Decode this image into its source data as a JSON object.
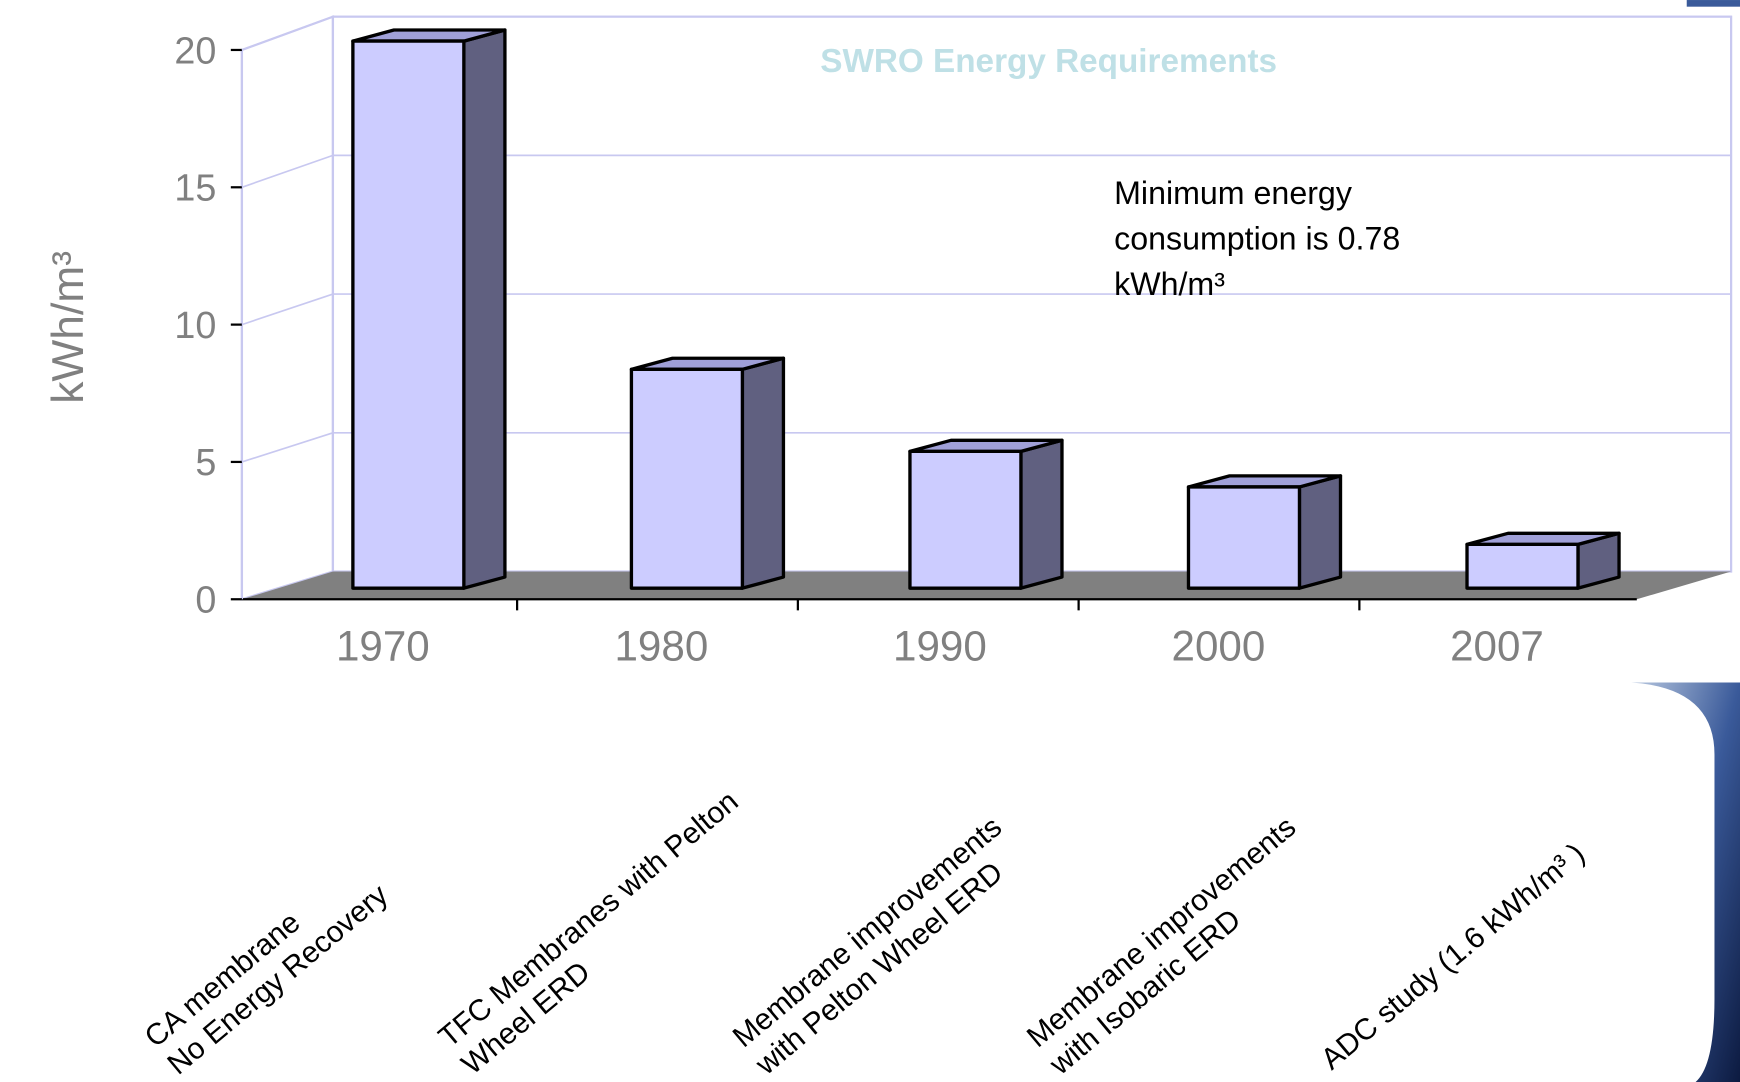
{
  "chart_data": {
    "type": "bar3d",
    "title": "SWRO Energy Requirements",
    "ylabel": "kWh/m³",
    "categories": [
      "1970",
      "1980",
      "1990",
      "2000",
      "2007"
    ],
    "values": [
      20,
      8,
      5,
      3.7,
      1.6
    ],
    "descriptions": [
      [
        "CA membrane",
        "No Energy Recovery"
      ],
      [
        "TFC Membranes with Pelton",
        "Wheel ERD"
      ],
      [
        "Membrane improvements",
        "with Pelton Wheel ERD"
      ],
      [
        "Membrane improvements",
        "with Isobaric ERD"
      ],
      [
        "ADC study (1.6 kWh/m³ )"
      ]
    ],
    "annotation": [
      "Minimum energy",
      "consumption is 0.78",
      "kWh/m³"
    ],
    "color": "#ccccff",
    "side_color": "#606080",
    "ylim": [
      0,
      20
    ],
    "yticks": [
      0,
      5,
      10,
      15,
      20
    ],
    "grid": true
  }
}
